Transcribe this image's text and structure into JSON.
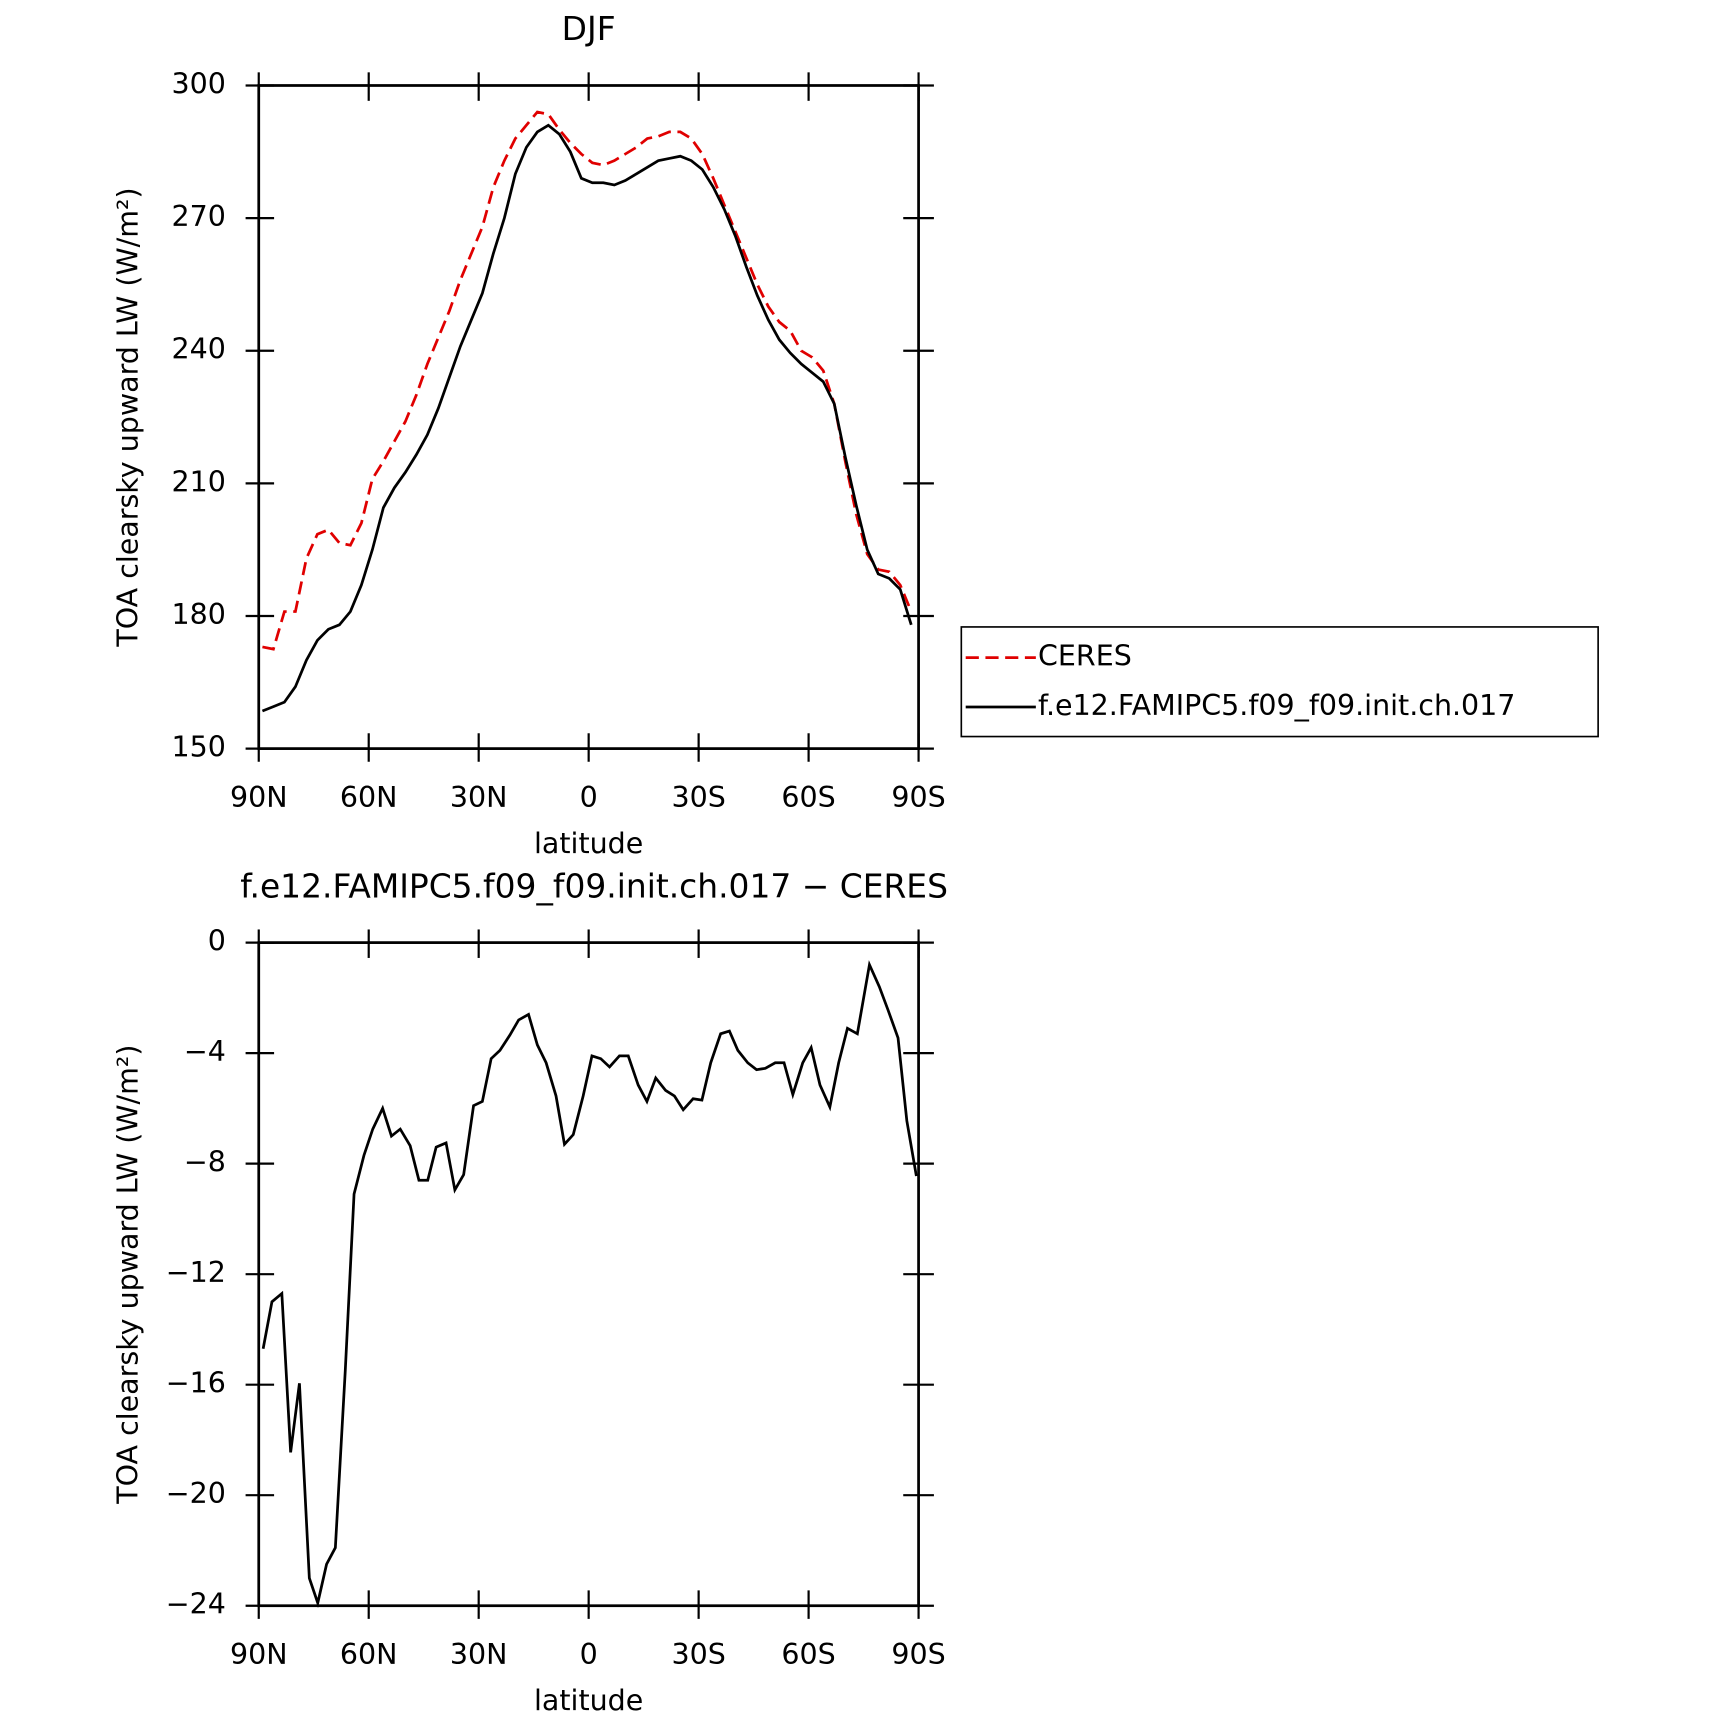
{
  "chart_data": [
    {
      "type": "line",
      "title": "DJF",
      "xlabel": "latitude",
      "ylabel": "TOA clearsky upward LW (W/m²)",
      "xlim": [
        90,
        -90
      ],
      "xticks": [
        {
          "value": 90,
          "label": "90N"
        },
        {
          "value": 60,
          "label": "60N"
        },
        {
          "value": 30,
          "label": "30N"
        },
        0,
        {
          "value": -30,
          "label": "30S"
        },
        {
          "value": -60,
          "label": "60S"
        },
        {
          "value": -90,
          "label": "90S"
        }
      ],
      "ylim": [
        150,
        300
      ],
      "yticks": [
        150,
        180,
        210,
        240,
        270,
        300
      ],
      "legend": "outside right",
      "x": [
        89,
        86,
        83,
        80,
        77,
        74,
        71,
        68,
        65,
        62,
        59,
        56,
        53,
        50,
        47,
        44,
        41,
        38,
        35,
        32,
        29,
        26,
        23,
        20,
        17,
        14,
        11,
        8,
        5,
        2,
        -1,
        -4,
        -7,
        -10,
        -13,
        -16,
        -19,
        -22,
        -25,
        -28,
        -31,
        -34,
        -37,
        -40,
        -43,
        -46,
        -49,
        -52,
        -55,
        -58,
        -61,
        -64,
        -67,
        -70,
        -73,
        -76,
        -79,
        -82,
        -85,
        -88
      ],
      "series": [
        {
          "name": "CERES",
          "color": "#e00000",
          "dash": "dashed",
          "values": [
            173,
            172.5,
            181,
            181,
            193,
            198.5,
            199.5,
            196.5,
            196,
            201,
            211,
            215,
            219.5,
            224,
            230,
            237,
            243,
            249,
            256,
            262,
            268,
            277,
            283,
            288,
            291,
            294,
            293.5,
            290,
            287,
            284.5,
            282.5,
            282,
            283,
            284.5,
            286,
            288,
            288.5,
            289.5,
            289.5,
            288,
            284.5,
            279,
            273,
            267,
            261,
            255,
            250,
            246.5,
            244.5,
            240,
            238.5,
            235.5,
            228,
            215,
            203,
            194,
            190.5,
            190,
            187,
            181
          ]
        },
        {
          "name": "f.e12.FAMIPC5.f09_f09.init.ch.017",
          "color": "#000000",
          "dash": "solid",
          "values": [
            158.5,
            159.5,
            160.5,
            164,
            170,
            174.5,
            177,
            178,
            181,
            187,
            195,
            204.5,
            209,
            212.5,
            216.5,
            221,
            227,
            234,
            241,
            247,
            253,
            262,
            270,
            280,
            286,
            289.5,
            291,
            289,
            285,
            279,
            278,
            278,
            277.5,
            278.5,
            280,
            281.5,
            283,
            283.5,
            284,
            283,
            281,
            277,
            272,
            266,
            259,
            252.5,
            247,
            242.5,
            239.5,
            237,
            235,
            233,
            228,
            216,
            205,
            195,
            189.5,
            188.5,
            186,
            178
          ]
        }
      ]
    },
    {
      "type": "line",
      "title": "f.e12.FAMIPC5.f09_f09.init.ch.017 − CERES",
      "xlabel": "latitude",
      "ylabel": "TOA clearsky upward LW (W/m²)",
      "xlim": [
        90,
        -90
      ],
      "xticks": [
        {
          "value": 90,
          "label": "90N"
        },
        {
          "value": 60,
          "label": "60N"
        },
        {
          "value": 30,
          "label": "30N"
        },
        0,
        {
          "value": -30,
          "label": "30S"
        },
        {
          "value": -60,
          "label": "60S"
        },
        {
          "value": -90,
          "label": "90S"
        }
      ],
      "ylim": [
        -24,
        0
      ],
      "yticks": [
        {
          "value": -24,
          "label": "−24"
        },
        {
          "value": -20,
          "label": "−20"
        },
        {
          "value": -16,
          "label": "−16"
        },
        {
          "value": -12,
          "label": "−12"
        },
        {
          "value": -8,
          "label": "−8"
        },
        {
          "value": -4,
          "label": "−4"
        },
        0
      ],
      "x": [
        88.8,
        86.4,
        83.7,
        81.3,
        78.9,
        76.2,
        73.9,
        71.5,
        69.1,
        66.4,
        64.0,
        61.3,
        58.9,
        56.2,
        53.8,
        51.4,
        48.7,
        46.3,
        43.9,
        41.6,
        38.9,
        36.5,
        34.1,
        31.4,
        29.0,
        26.6,
        24.2,
        21.5,
        19.1,
        16.4,
        14.0,
        11.6,
        8.9,
        6.6,
        4.2,
        1.5,
        -0.9,
        -3.3,
        -5.7,
        -8.4,
        -10.8,
        -13.5,
        -15.9,
        -18.3,
        -21.0,
        -23.4,
        -25.8,
        -28.5,
        -30.9,
        -33.3,
        -36.0,
        -38.4,
        -40.7,
        -43.4,
        -45.8,
        -48.2,
        -50.9,
        -53.3,
        -55.7,
        -58.4,
        -60.7,
        -63.1,
        -65.8,
        -68.2,
        -70.6,
        -73.3,
        -76.6,
        -79.3,
        -81.7,
        -84.4,
        -86.8,
        -89.4
      ],
      "series": [
        {
          "color": "#000000",
          "dash": "solid",
          "values": [
            -14.7,
            -13.0,
            -12.7,
            -18.45,
            -15.95,
            -23.0,
            -23.9,
            -22.5,
            -21.9,
            -15.5,
            -9.1,
            -7.7,
            -6.75,
            -6.0,
            -7.0,
            -6.75,
            -7.35,
            -8.6,
            -8.6,
            -7.4,
            -7.25,
            -8.95,
            -8.4,
            -5.9,
            -5.75,
            -4.2,
            -3.9,
            -3.35,
            -2.8,
            -2.6,
            -3.7,
            -4.35,
            -5.55,
            -7.3,
            -6.95,
            -5.55,
            -4.1,
            -4.2,
            -4.5,
            -4.1,
            -4.1,
            -5.15,
            -5.75,
            -4.9,
            -5.35,
            -5.55,
            -6.05,
            -5.65,
            -5.7,
            -4.35,
            -3.3,
            -3.2,
            -3.9,
            -4.35,
            -4.6,
            -4.55,
            -4.35,
            -4.35,
            -5.5,
            -4.35,
            -3.8,
            -5.15,
            -5.95,
            -4.35,
            -3.1,
            -3.3,
            -0.8,
            -1.6,
            -2.45,
            -3.45,
            -6.45,
            -8.45
          ]
        }
      ]
    }
  ]
}
